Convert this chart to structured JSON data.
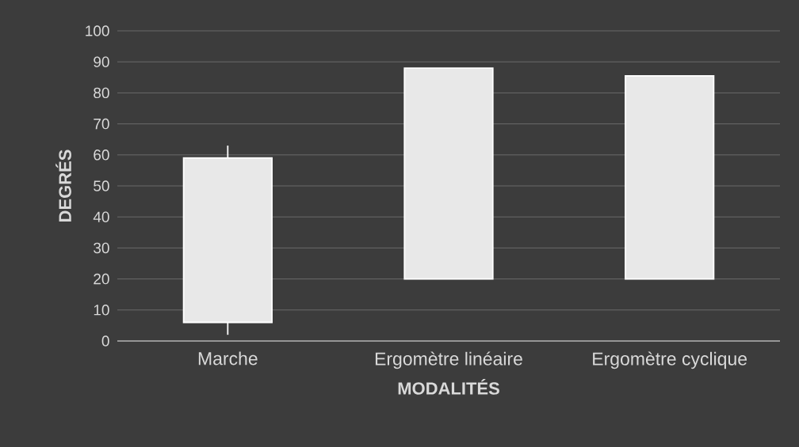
{
  "chart_data": {
    "type": "candlestick",
    "xlabel": "MODALITÉS",
    "ylabel": "DEGRÉS",
    "categories": [
      "Marche",
      "Ergomètre linéaire",
      "Ergomètre cyclique"
    ],
    "ohlc": [
      [
        6,
        63,
        2,
        59
      ],
      [
        20,
        88,
        20,
        88
      ],
      [
        20,
        85.5,
        20,
        85.5
      ]
    ],
    "color": "#e8e8e8",
    "ylim": [
      0,
      100
    ],
    "yticks": [
      0,
      10,
      20,
      30,
      40,
      50,
      60,
      70,
      80,
      90,
      100
    ],
    "grid": "y"
  }
}
